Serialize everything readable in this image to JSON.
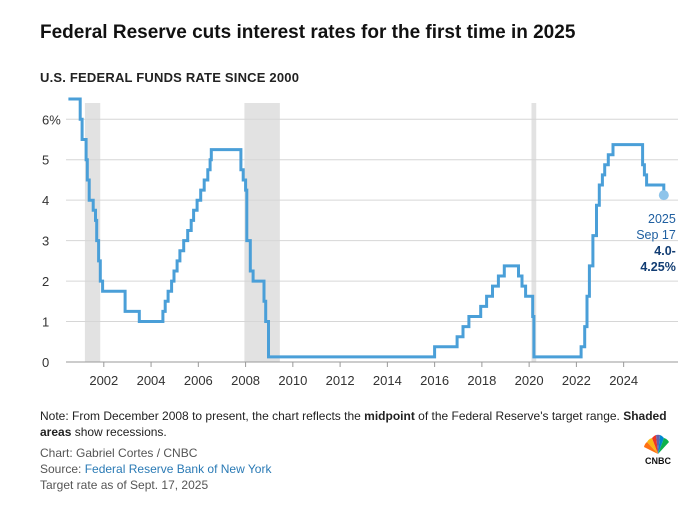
{
  "headline": "Federal Reserve cuts interest rates for the first time in 2025",
  "chart_data": {
    "type": "line",
    "title": "U.S. FEDERAL FUNDS RATE SINCE 2000",
    "xlabel": "",
    "ylabel": "",
    "xlim": [
      2000.4,
      2026.3
    ],
    "ylim": [
      0,
      6.6
    ],
    "x_ticks": [
      {
        "value": 2002,
        "label": "2002"
      },
      {
        "value": 2004,
        "label": "2004"
      },
      {
        "value": 2006,
        "label": "2006"
      },
      {
        "value": 2008,
        "label": "2008"
      },
      {
        "value": 2010,
        "label": "2010"
      },
      {
        "value": 2012,
        "label": "2012"
      },
      {
        "value": 2014,
        "label": "2014"
      },
      {
        "value": 2016,
        "label": "2016"
      },
      {
        "value": 2018,
        "label": "2018"
      },
      {
        "value": 2020,
        "label": "2020"
      },
      {
        "value": 2022,
        "label": "2022"
      },
      {
        "value": 2024,
        "label": "2024"
      }
    ],
    "y_ticks": [
      {
        "value": 0,
        "label": "0"
      },
      {
        "value": 1,
        "label": "1"
      },
      {
        "value": 2,
        "label": "2"
      },
      {
        "value": 3,
        "label": "3"
      },
      {
        "value": 4,
        "label": "4"
      },
      {
        "value": 5,
        "label": "5"
      },
      {
        "value": 6,
        "label": "6%"
      }
    ],
    "grid": "horizontal",
    "recessions": [
      {
        "start": 2001.2,
        "end": 2001.85
      },
      {
        "start": 2007.95,
        "end": 2009.45
      },
      {
        "start": 2020.1,
        "end": 2020.3
      }
    ],
    "series": [
      {
        "color": "#4a9fd8",
        "points": [
          [
            2000.5,
            6.5
          ],
          [
            2000.95,
            6.5
          ],
          [
            2001.0,
            6.0
          ],
          [
            2001.08,
            5.5
          ],
          [
            2001.25,
            5.0
          ],
          [
            2001.3,
            4.5
          ],
          [
            2001.38,
            4.0
          ],
          [
            2001.55,
            3.75
          ],
          [
            2001.65,
            3.5
          ],
          [
            2001.7,
            3.0
          ],
          [
            2001.78,
            2.5
          ],
          [
            2001.85,
            2.0
          ],
          [
            2001.95,
            1.75
          ],
          [
            2002.9,
            1.25
          ],
          [
            2003.5,
            1.0
          ],
          [
            2004.5,
            1.25
          ],
          [
            2004.6,
            1.5
          ],
          [
            2004.72,
            1.75
          ],
          [
            2004.87,
            2.0
          ],
          [
            2004.97,
            2.25
          ],
          [
            2005.1,
            2.5
          ],
          [
            2005.22,
            2.75
          ],
          [
            2005.38,
            3.0
          ],
          [
            2005.55,
            3.25
          ],
          [
            2005.7,
            3.5
          ],
          [
            2005.8,
            3.75
          ],
          [
            2005.95,
            4.0
          ],
          [
            2006.1,
            4.25
          ],
          [
            2006.25,
            4.5
          ],
          [
            2006.4,
            4.75
          ],
          [
            2006.5,
            5.0
          ],
          [
            2006.55,
            5.25
          ],
          [
            2007.7,
            5.25
          ],
          [
            2007.8,
            4.75
          ],
          [
            2007.9,
            4.5
          ],
          [
            2008.0,
            4.25
          ],
          [
            2008.05,
            3.0
          ],
          [
            2008.2,
            2.25
          ],
          [
            2008.32,
            2.0
          ],
          [
            2008.78,
            1.5
          ],
          [
            2008.85,
            1.0
          ],
          [
            2008.97,
            0.125
          ],
          [
            2015.95,
            0.125
          ],
          [
            2016.0,
            0.375
          ],
          [
            2016.95,
            0.625
          ],
          [
            2017.2,
            0.875
          ],
          [
            2017.45,
            1.125
          ],
          [
            2017.95,
            1.375
          ],
          [
            2018.2,
            1.625
          ],
          [
            2018.45,
            1.875
          ],
          [
            2018.7,
            2.125
          ],
          [
            2018.95,
            2.375
          ],
          [
            2019.55,
            2.125
          ],
          [
            2019.7,
            1.875
          ],
          [
            2019.85,
            1.625
          ],
          [
            2020.15,
            1.125
          ],
          [
            2020.2,
            0.125
          ],
          [
            2022.2,
            0.375
          ],
          [
            2022.35,
            0.875
          ],
          [
            2022.45,
            1.625
          ],
          [
            2022.55,
            2.375
          ],
          [
            2022.7,
            3.125
          ],
          [
            2022.85,
            3.875
          ],
          [
            2022.97,
            4.375
          ],
          [
            2023.1,
            4.625
          ],
          [
            2023.2,
            4.875
          ],
          [
            2023.35,
            5.125
          ],
          [
            2023.55,
            5.375
          ],
          [
            2024.7,
            5.375
          ],
          [
            2024.8,
            4.875
          ],
          [
            2024.88,
            4.625
          ],
          [
            2024.97,
            4.375
          ],
          [
            2025.6,
            4.375
          ],
          [
            2025.7,
            4.125
          ]
        ]
      }
    ],
    "annotation": {
      "x": 2025.7,
      "y": 4.125,
      "label_line1": "2025",
      "label_line2": "Sep 17",
      "value_line1": "4.0-",
      "value_line2": "4.25%"
    }
  },
  "note": {
    "part1": "Note: From December 2008 to present, the chart reflects the ",
    "bold1": "midpoint",
    "part2": " of the Federal Reserve's target range. ",
    "bold2": "Shaded areas",
    "part3": " show recessions."
  },
  "credits": {
    "chart": "Chart: Gabriel Cortes / CNBC",
    "source_prefix": "Source: ",
    "source_link": "Federal Reserve Bank of New York",
    "target": "Target rate as of Sept. 17, 2025"
  },
  "logo": {
    "text": "CNBC"
  }
}
